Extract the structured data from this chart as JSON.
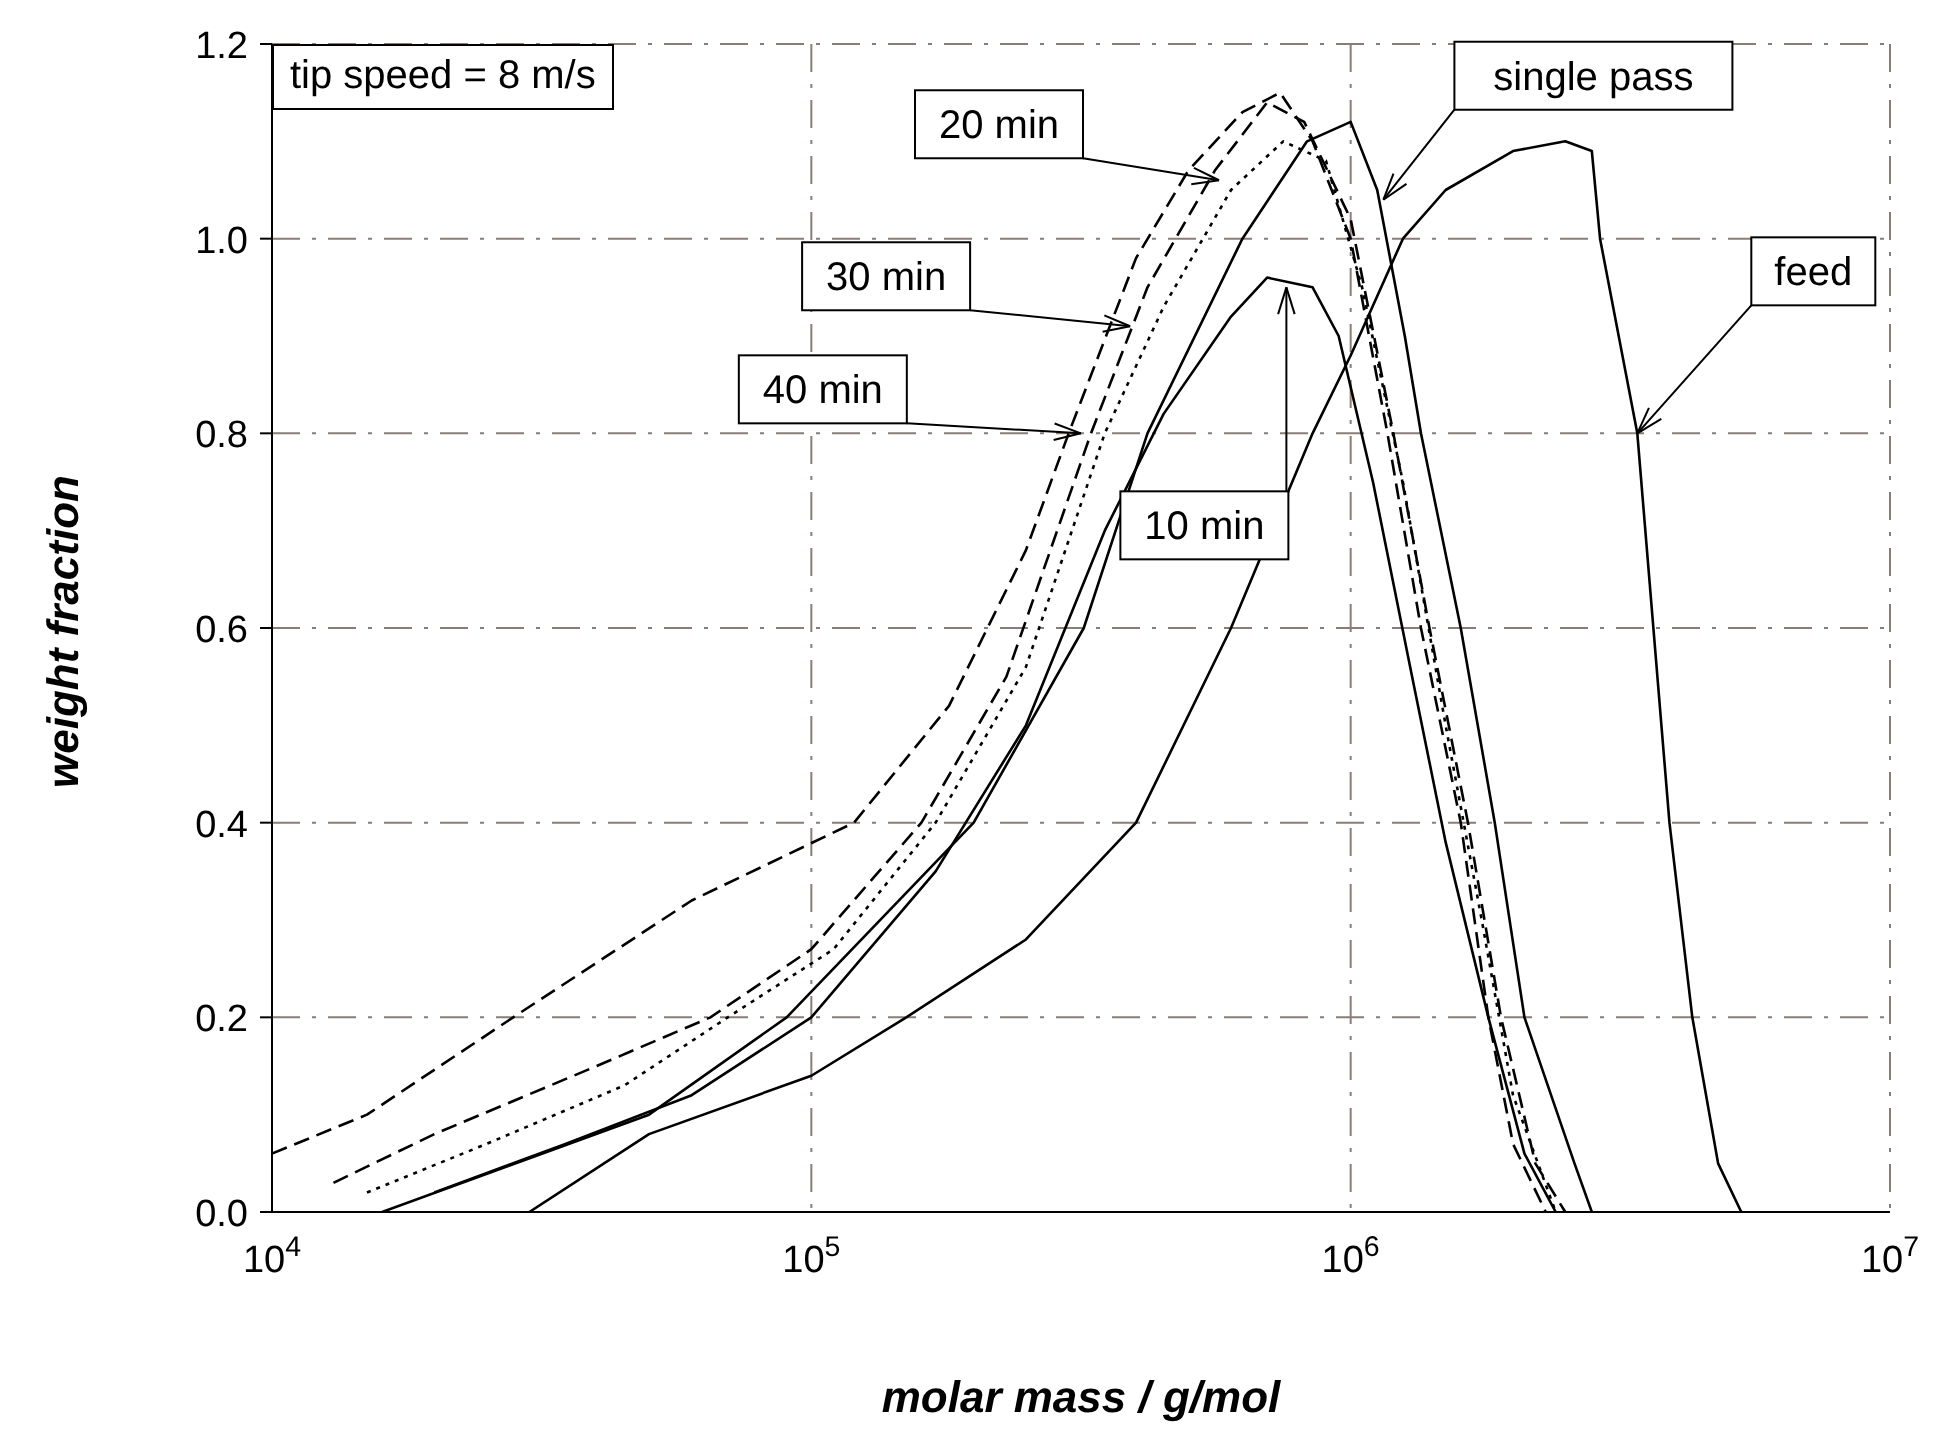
{
  "chart_data": {
    "type": "line",
    "xlabel": "molar mass / g/mol",
    "ylabel": "weight fraction",
    "log": "x",
    "grid": true,
    "legend": false,
    "marker": "none",
    "xlim": [
      10000,
      10000000
    ],
    "xticks": [
      {
        "value": 10000,
        "label": "10$^{4}$"
      },
      {
        "value": 100000,
        "label": "10$^{5}$"
      },
      {
        "value": 1000000,
        "label": "10$^{6}$"
      },
      {
        "value": 10000000,
        "label": "10$^{7}$"
      }
    ],
    "ylim": [
      0,
      1.2
    ],
    "yticks": [
      {
        "value": 0,
        "label": "0.0"
      },
      0.2,
      0.4,
      0.6,
      0.8,
      {
        "value": 1,
        "label": "1.0"
      },
      1.2
    ],
    "series": [
      {
        "color": "#000000",
        "line_style": "solid",
        "x": [
          30000,
          50000,
          100000,
          150000,
          250000,
          400000,
          600000,
          850000,
          1000000,
          1250000,
          1500000,
          2000000,
          2500000,
          2800000,
          2900000,
          3400000,
          3900000,
          4300000,
          4800000,
          5300000
        ],
        "values": [
          0,
          0.08,
          0.14,
          0.2,
          0.28,
          0.4,
          0.6,
          0.8,
          0.88,
          1,
          1.05,
          1.09,
          1.1,
          1.09,
          1,
          0.8,
          0.4,
          0.2,
          0.05,
          0
        ]
      },
      {
        "color": "#000000",
        "line_style": "solid",
        "x": [
          16000,
          50000,
          90000,
          200000,
          320000,
          420000,
          630000,
          830000,
          1000000,
          1120000,
          1260000,
          1350000,
          1600000,
          1850000,
          2100000,
          2600000,
          2800000
        ],
        "values": [
          0,
          0.1,
          0.2,
          0.4,
          0.6,
          0.8,
          1,
          1.1,
          1.12,
          1.05,
          0.9,
          0.8,
          0.6,
          0.4,
          0.2,
          0.05,
          0
        ]
      },
      {
        "color": "#000000",
        "line_style": "solid",
        "x": [
          20000,
          35000,
          60000,
          100000,
          170000,
          250000,
          350000,
          450000,
          600000,
          700000,
          850000,
          950000,
          1100000,
          1300000,
          1500000,
          1800000,
          2100000,
          2400000
        ],
        "values": [
          0.02,
          0.07,
          0.12,
          0.2,
          0.35,
          0.5,
          0.7,
          0.82,
          0.92,
          0.96,
          0.95,
          0.9,
          0.75,
          0.55,
          0.38,
          0.2,
          0.06,
          0
        ]
      },
      {
        "color": "#000000",
        "line_style": "dashed",
        "x": [
          13000,
          20000,
          40000,
          65000,
          100000,
          160000,
          230000,
          330000,
          420000,
          560000,
          700000,
          820000,
          1000000,
          1200000,
          1400000,
          1650000,
          1900000,
          2200000,
          2500000
        ],
        "values": [
          0.03,
          0.08,
          0.15,
          0.2,
          0.27,
          0.4,
          0.55,
          0.8,
          0.95,
          1.07,
          1.14,
          1.12,
          1.02,
          0.8,
          0.6,
          0.4,
          0.2,
          0.05,
          0
        ]
      },
      {
        "color": "#000000",
        "line_style": "dotted",
        "x": [
          15000,
          25000,
          45000,
          70000,
          110000,
          170000,
          250000,
          350000,
          450000,
          600000,
          750000,
          900000,
          1050000,
          1250000,
          1500000,
          1750000,
          2000000,
          2400000
        ],
        "values": [
          0.02,
          0.07,
          0.13,
          0.2,
          0.27,
          0.4,
          0.56,
          0.8,
          0.93,
          1.05,
          1.1,
          1.08,
          0.95,
          0.75,
          0.5,
          0.3,
          0.12,
          0
        ]
      },
      {
        "color": "#000000",
        "line_style": "dashed",
        "x": [
          10000,
          15000,
          28000,
          60000,
          120000,
          180000,
          250000,
          300000,
          400000,
          500000,
          630000,
          740000,
          850000,
          1000000,
          1170000,
          1350000,
          1600000,
          1800000,
          2000000,
          2300000
        ],
        "values": [
          0.06,
          0.1,
          0.2,
          0.32,
          0.4,
          0.52,
          0.68,
          0.8,
          0.98,
          1.07,
          1.13,
          1.15,
          1.1,
          1,
          0.8,
          0.6,
          0.4,
          0.2,
          0.07,
          0
        ]
      }
    ],
    "annotations": [
      "tip speed = 8 m/s",
      {
        "text": "feed",
        "x": 3400000,
        "y": 0.8
      },
      {
        "text": "single pass",
        "x": 1150000,
        "y": 1.04
      },
      {
        "text": "10 min",
        "x": 760000,
        "y": 0.95
      },
      {
        "text": "20 min",
        "x": 570000,
        "y": 1.06
      },
      {
        "text": "30 min",
        "x": 390000,
        "y": 0.91
      },
      {
        "text": "40 min",
        "x": 316000,
        "y": 0.8
      }
    ]
  }
}
